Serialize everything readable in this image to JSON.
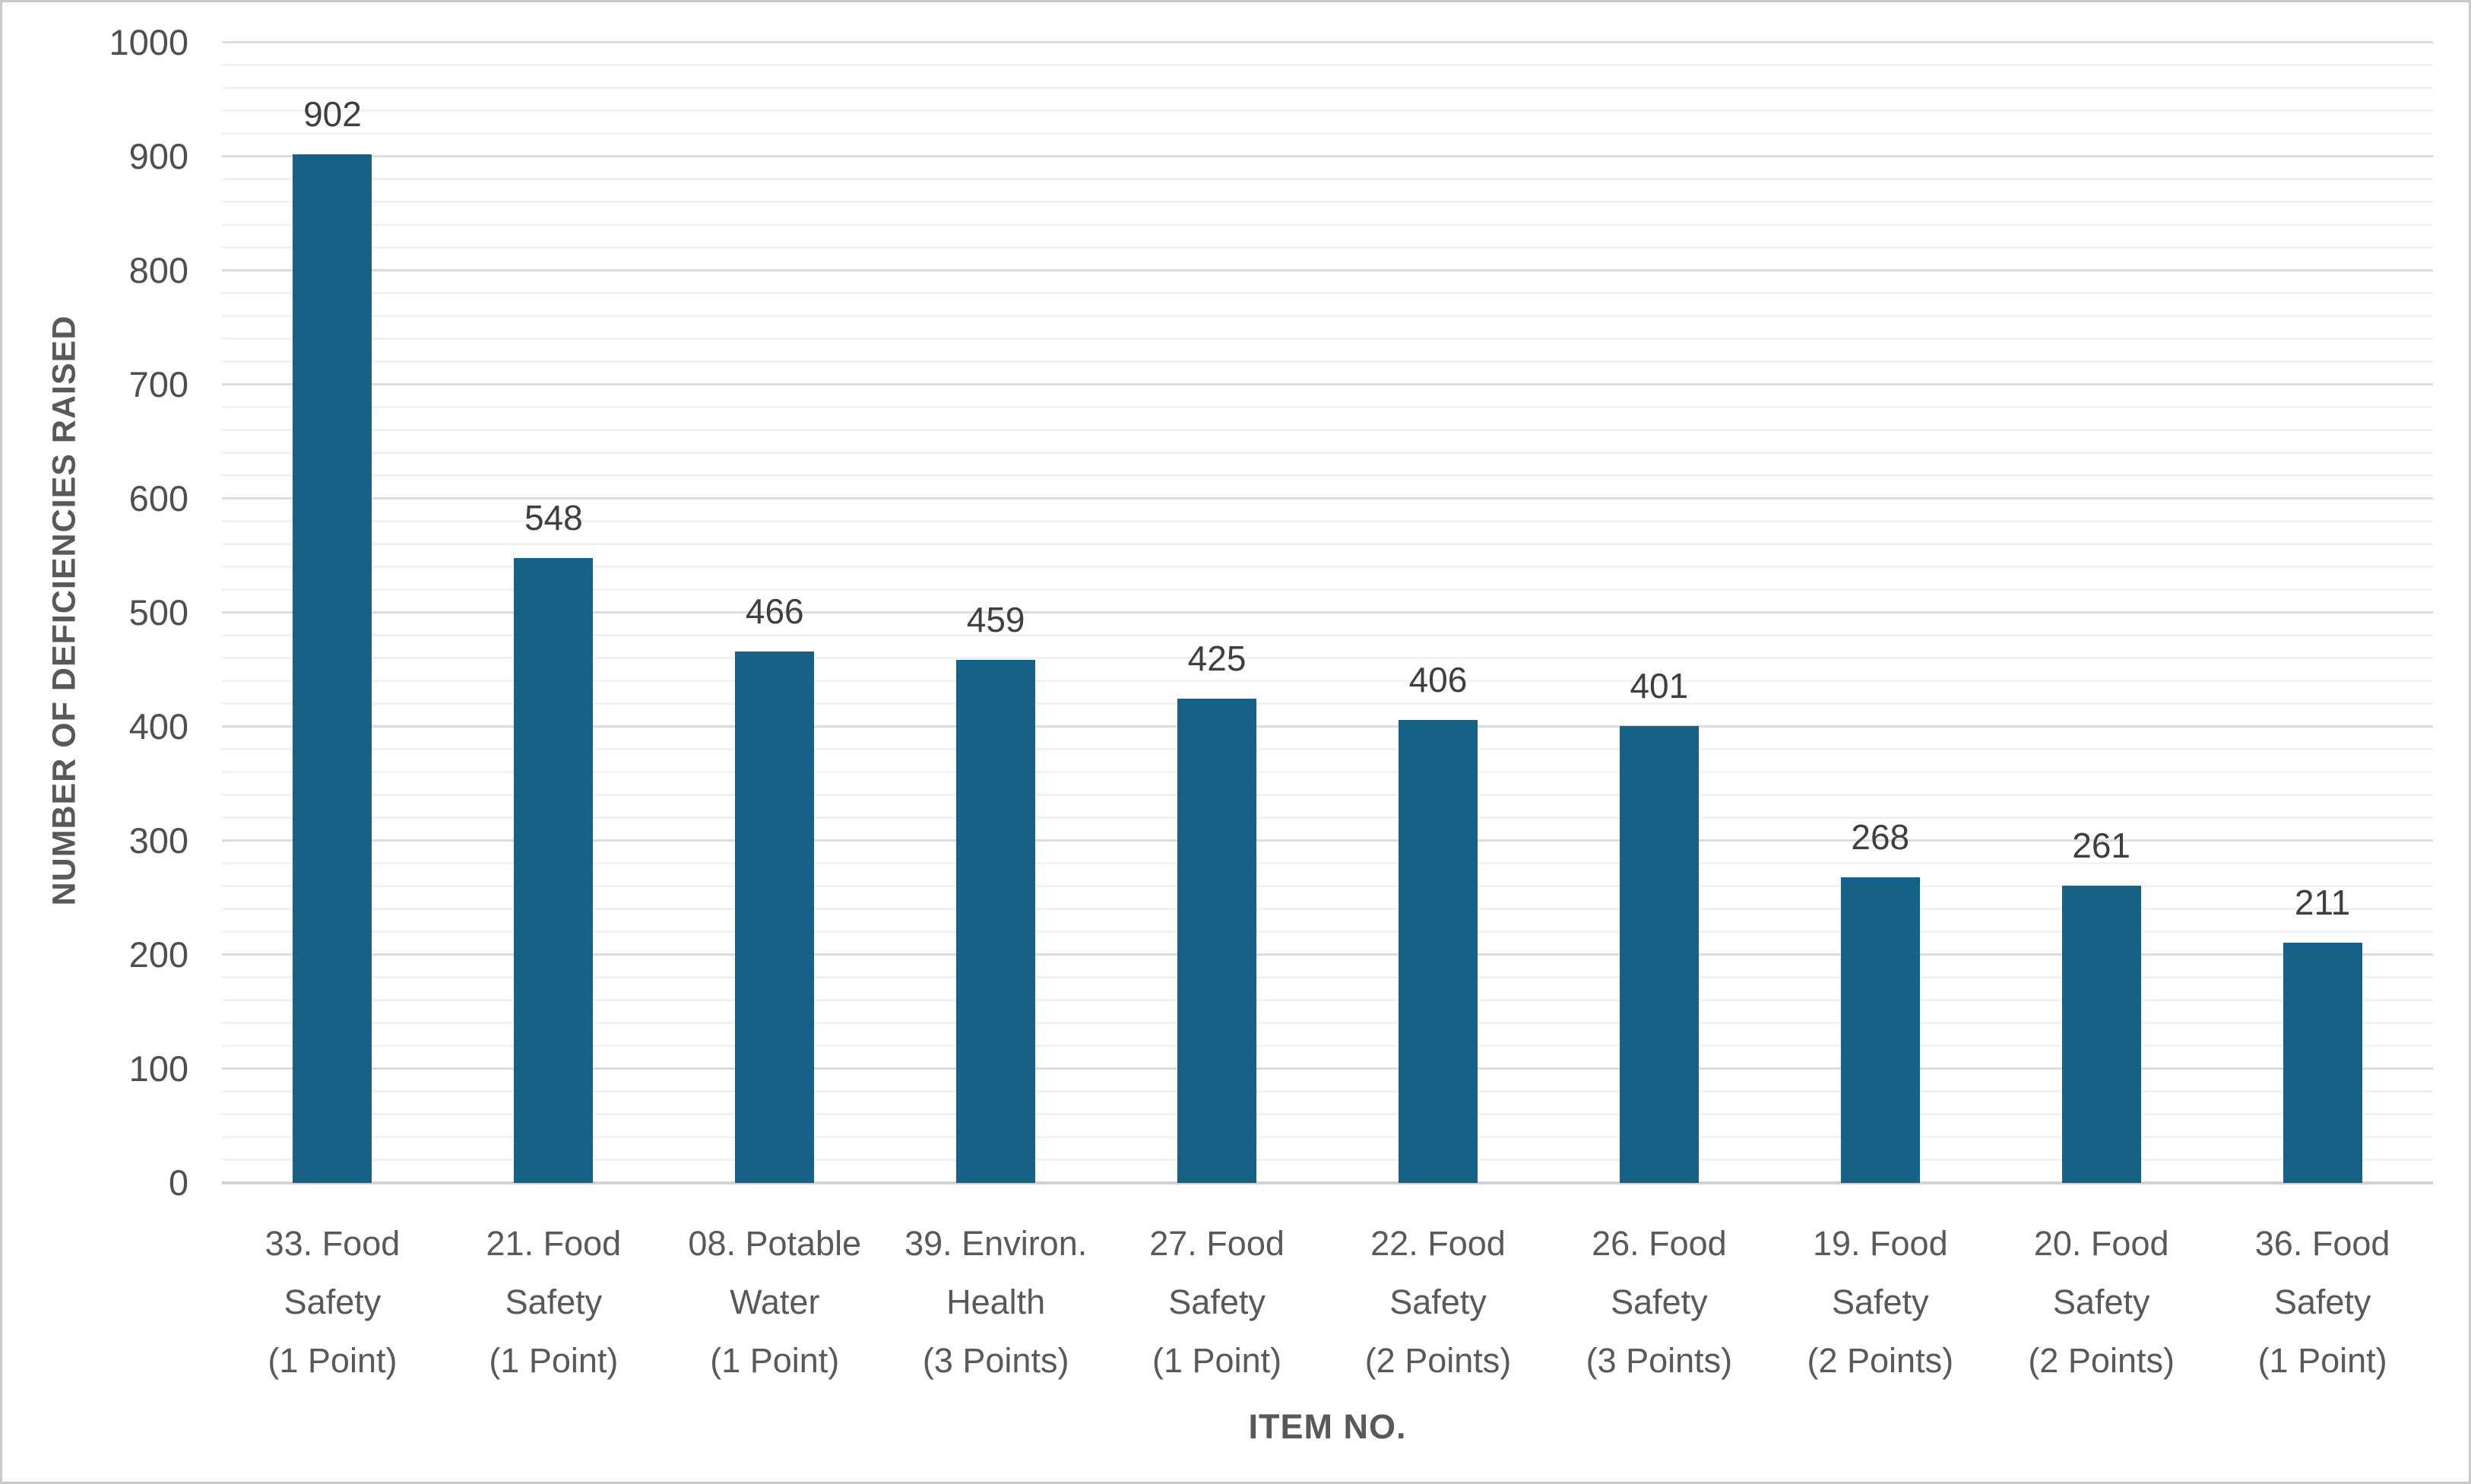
{
  "chart_data": {
    "type": "bar",
    "title": "",
    "xlabel": "ITEM NO.",
    "ylabel": "NUMBER OF DEFICIENCIES RAISED",
    "categories": [
      "33. Food Safety (1 Point)",
      "21. Food Safety (1 Point)",
      "08. Potable Water (1 Point)",
      "39. Environ. Health (3 Points)",
      "27. Food Safety (1 Point)",
      "22. Food Safety (2 Points)",
      "26. Food Safety (3 Points)",
      "19. Food Safety (2 Points)",
      "20. Food Safety (2 Points)",
      "36. Food Safety (1 Point)"
    ],
    "category_lines": [
      [
        "33. Food",
        "Safety",
        "(1 Point)"
      ],
      [
        "21. Food",
        "Safety",
        "(1 Point)"
      ],
      [
        "08. Potable",
        "Water",
        "(1 Point)"
      ],
      [
        "39. Environ.",
        "Health",
        "(3 Points)"
      ],
      [
        "27. Food",
        "Safety",
        "(1 Point)"
      ],
      [
        "22. Food",
        "Safety",
        "(2 Points)"
      ],
      [
        "26. Food",
        "Safety",
        "(3 Points)"
      ],
      [
        "19. Food",
        "Safety",
        "(2 Points)"
      ],
      [
        "20. Food",
        "Safety",
        "(2 Points)"
      ],
      [
        "36. Food",
        "Safety",
        "(1 Point)"
      ]
    ],
    "values": [
      902,
      548,
      466,
      459,
      425,
      406,
      401,
      268,
      261,
      211
    ],
    "data_labels": [
      "902",
      "548",
      "466",
      "459",
      "425",
      "406",
      "401",
      "268",
      "261",
      "211"
    ],
    "ylim": [
      0,
      1000
    ],
    "y_major_step": 100,
    "y_minor_step": 20,
    "y_tick_labels": [
      "0",
      "100",
      "200",
      "300",
      "400",
      "500",
      "600",
      "700",
      "800",
      "900",
      "1000"
    ],
    "grid": "horizontal, minor every 20 (light) and major every 100 (darker), on",
    "legend": "none",
    "bar_color": "#166286"
  },
  "colors": {
    "bar": "#166286",
    "grid_major": "#dcdcdc",
    "grid_minor": "#f2f2f2",
    "axis_line": "#d2d2d2",
    "tick_text": "#4f4f4f",
    "value_text": "#3f3f3f",
    "category_text": "#595959",
    "axis_title_text": "#595959",
    "figure_border": "#c9c9c9",
    "background": "#ffffff"
  }
}
